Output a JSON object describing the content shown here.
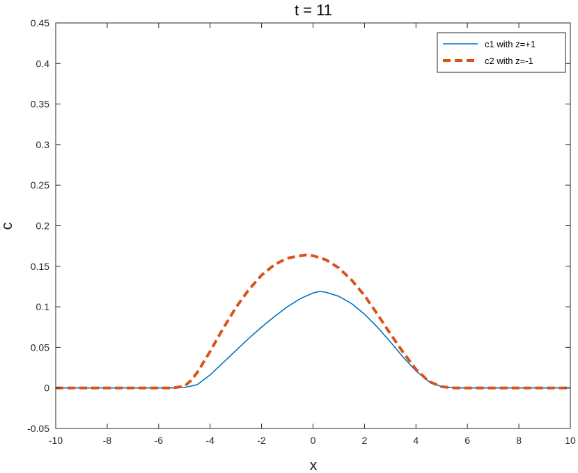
{
  "chart_data": {
    "type": "line",
    "title": "t = 11",
    "xlabel": "x",
    "ylabel": "c",
    "xlim": [
      -10,
      10
    ],
    "ylim": [
      -0.05,
      0.45
    ],
    "xticks": [
      -10,
      -8,
      -6,
      -4,
      -2,
      0,
      2,
      4,
      6,
      8,
      10
    ],
    "xtick_labels": [
      "-10",
      "-8",
      "-6",
      "-4",
      "-2",
      "0",
      "2",
      "4",
      "6",
      "8",
      "10"
    ],
    "yticks": [
      -0.05,
      0,
      0.05,
      0.1,
      0.15,
      0.2,
      0.25,
      0.3,
      0.35,
      0.4,
      0.45
    ],
    "ytick_labels": [
      "-0.05",
      "0",
      "0.05",
      "0.1",
      "0.15",
      "0.2",
      "0.25",
      "0.3",
      "0.35",
      "0.4",
      "0.45"
    ],
    "grid": false,
    "legend_position": "top-right",
    "series": [
      {
        "name": "c1 with z=+1",
        "color": "#0072BD",
        "style": "solid",
        "x": [
          -10,
          -6,
          -5.5,
          -5,
          -4.5,
          -4,
          -3.5,
          -3,
          -2.5,
          -2,
          -1.5,
          -1,
          -0.5,
          0,
          0.25,
          0.5,
          1,
          1.5,
          2,
          2.5,
          3,
          3.5,
          4,
          4.5,
          5,
          5.5,
          6,
          10
        ],
        "y": [
          0,
          0,
          0,
          0.0005,
          0.004,
          0.016,
          0.031,
          0.046,
          0.061,
          0.075,
          0.088,
          0.1,
          0.11,
          0.117,
          0.119,
          0.118,
          0.113,
          0.104,
          0.091,
          0.075,
          0.057,
          0.038,
          0.021,
          0.008,
          0.0015,
          0,
          0,
          0
        ]
      },
      {
        "name": "c2 with z=-1",
        "color": "#D95319",
        "style": "dashed",
        "x": [
          -10,
          -6,
          -5.5,
          -5,
          -4.75,
          -4.5,
          -4,
          -3.5,
          -3,
          -2.5,
          -2,
          -1.5,
          -1,
          -0.5,
          -0.25,
          0,
          0.5,
          1,
          1.5,
          2,
          2.5,
          3,
          3.5,
          4,
          4.5,
          5,
          5.5,
          6,
          10
        ],
        "y": [
          0,
          0,
          0,
          0.002,
          0.009,
          0.019,
          0.045,
          0.073,
          0.099,
          0.121,
          0.139,
          0.152,
          0.16,
          0.163,
          0.164,
          0.163,
          0.158,
          0.148,
          0.133,
          0.114,
          0.091,
          0.067,
          0.044,
          0.023,
          0.008,
          0.0015,
          0,
          0,
          0
        ]
      }
    ]
  }
}
